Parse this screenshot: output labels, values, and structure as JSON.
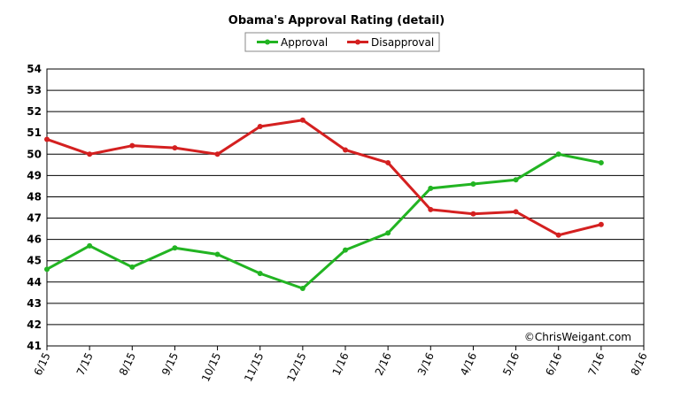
{
  "chart_data": {
    "type": "line",
    "title": "Obama's Approval Rating (detail)",
    "categories": [
      "6/15",
      "7/15",
      "8/15",
      "9/15",
      "10/15",
      "11/15",
      "12/15",
      "1/16",
      "2/16",
      "3/16",
      "4/16",
      "5/16",
      "6/16",
      "7/16",
      "8/16"
    ],
    "series": [
      {
        "name": "Approval",
        "color": "#22b422",
        "values": [
          44.6,
          45.7,
          44.7,
          45.6,
          45.3,
          44.4,
          43.7,
          45.5,
          46.3,
          48.4,
          48.6,
          48.8,
          50.0,
          49.6,
          null
        ]
      },
      {
        "name": "Disapproval",
        "color": "#d42020",
        "values": [
          50.7,
          50.0,
          50.4,
          50.3,
          50.0,
          51.3,
          51.6,
          50.2,
          49.6,
          47.4,
          47.2,
          47.3,
          46.2,
          46.7,
          null
        ]
      }
    ],
    "ylim": [
      41,
      54
    ],
    "yticks": [
      41,
      42,
      43,
      44,
      45,
      46,
      47,
      48,
      49,
      50,
      51,
      52,
      53,
      54
    ],
    "grid": true,
    "annotation": "©ChrisWeigant.com"
  }
}
